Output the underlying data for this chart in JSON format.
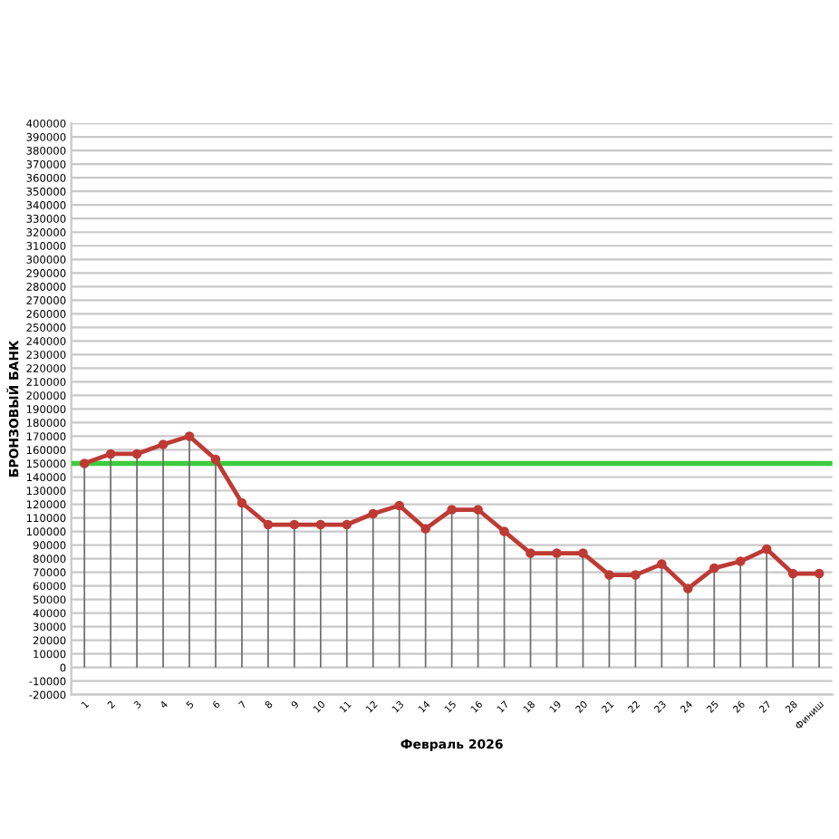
{
  "chart_data": {
    "type": "line",
    "xlabel": "Февраль 2026",
    "ylabel": "БРОНЗОВЫЙ БАНК",
    "categories": [
      "1",
      "2",
      "3",
      "4",
      "5",
      "6",
      "7",
      "8",
      "9",
      "10",
      "11",
      "12",
      "13",
      "14",
      "15",
      "16",
      "17",
      "18",
      "19",
      "20",
      "21",
      "22",
      "23",
      "24",
      "25",
      "26",
      "27",
      "28",
      "Финиш"
    ],
    "series": [
      {
        "color": "#be3a34",
        "values": [
          150000,
          157000,
          157000,
          164000,
          170000,
          153000,
          121000,
          105000,
          105000,
          105000,
          105000,
          113000,
          119000,
          102000,
          116000,
          116000,
          100000,
          84000,
          84000,
          84000,
          68000,
          68000,
          76000,
          58000,
          73000,
          78000,
          87000,
          69000,
          69000
        ]
      },
      {
        "type": "bar",
        "color": "#6e6e6e",
        "values": [
          150000,
          157000,
          157000,
          164000,
          170000,
          153000,
          121000,
          105000,
          105000,
          105000,
          105000,
          113000,
          119000,
          102000,
          116000,
          116000,
          100000,
          84000,
          84000,
          84000,
          68000,
          68000,
          76000,
          58000,
          73000,
          78000,
          87000,
          69000,
          69000
        ]
      }
    ],
    "ylim": [
      -20000,
      400000
    ],
    "yticks": [
      -20000,
      -10000,
      0,
      10000,
      20000,
      30000,
      40000,
      50000,
      60000,
      70000,
      80000,
      90000,
      100000,
      110000,
      120000,
      130000,
      140000,
      150000,
      160000,
      170000,
      180000,
      190000,
      200000,
      210000,
      220000,
      230000,
      240000,
      250000,
      260000,
      270000,
      280000,
      290000,
      300000,
      310000,
      320000,
      330000,
      340000,
      350000,
      360000,
      370000,
      380000,
      390000,
      400000
    ],
    "ref_lines": [
      {
        "axis": "y",
        "value": 150000,
        "color": "#3ccc3c",
        "line_style": "solid"
      }
    ],
    "grid": "y",
    "marker": "circle",
    "line_style": "solid"
  }
}
